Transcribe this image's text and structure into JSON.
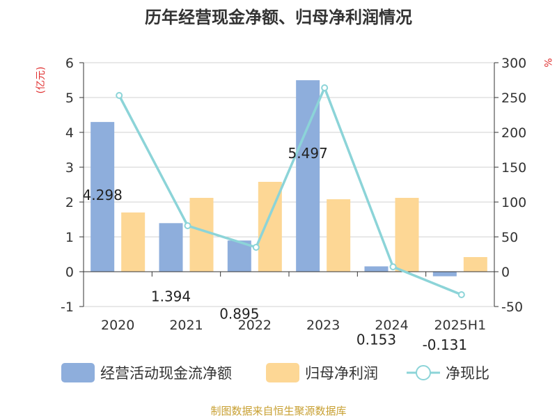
{
  "chart_data": {
    "type": "bar",
    "title": "历年经营现金净额、归母净利润情况",
    "categories": [
      "2020",
      "2021",
      "2022",
      "2023",
      "2024",
      "2025H1"
    ],
    "left_axis": {
      "unit": "(亿元)",
      "min": -1,
      "max": 6,
      "step": 1
    },
    "right_axis": {
      "unit": "%",
      "min": -50,
      "max": 300,
      "step": 50
    },
    "series": [
      {
        "name": "经营活动现金流净额",
        "type": "bar",
        "axis": "left",
        "color": "#8eaedc",
        "values": [
          4.298,
          1.394,
          0.895,
          5.497,
          0.153,
          -0.131
        ],
        "labels": [
          "4.298",
          "1.394",
          "0.895",
          "5.497",
          "0.153",
          "-0.131"
        ]
      },
      {
        "name": "归母净利润",
        "type": "bar",
        "axis": "left",
        "color": "#fdd795",
        "values": [
          1.7,
          2.12,
          2.58,
          2.08,
          2.12,
          0.42
        ]
      },
      {
        "name": "净现比",
        "type": "line",
        "axis": "right",
        "color": "#8cd4d8",
        "values": [
          253,
          66,
          35,
          264,
          7,
          -33
        ]
      }
    ],
    "legend_position": "bottom",
    "grid": true
  },
  "footer": {
    "source": "制图数据来自恒生聚源数据库"
  }
}
